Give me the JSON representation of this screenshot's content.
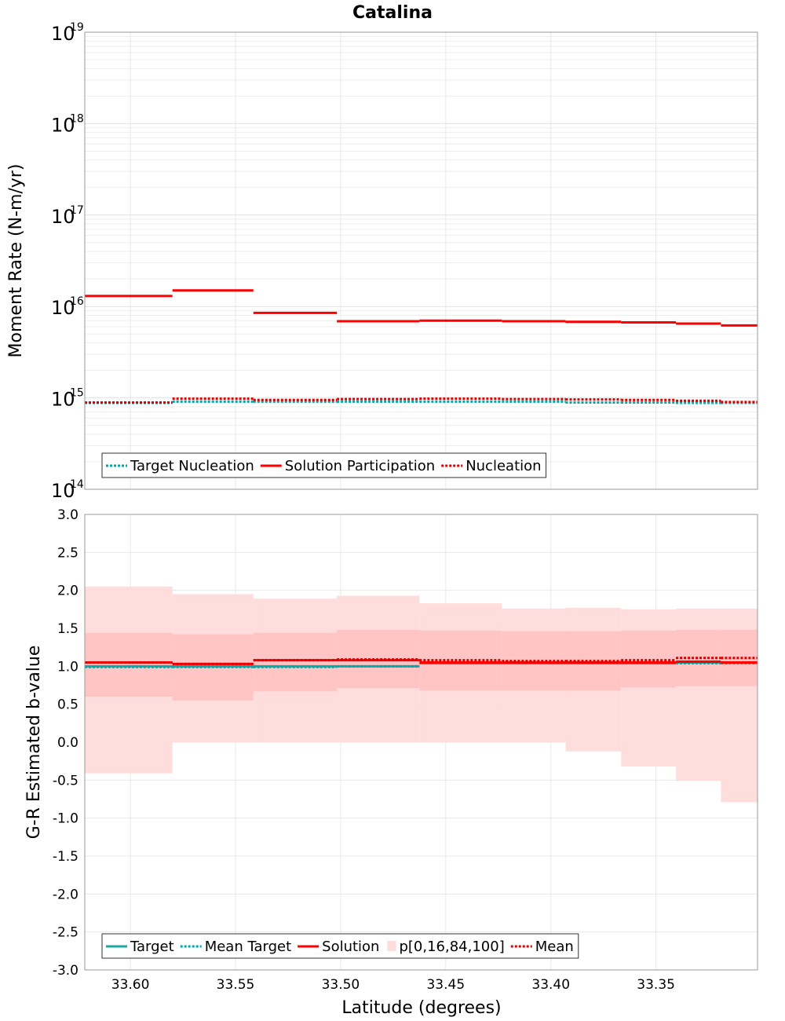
{
  "chart_data": [
    {
      "type": "line",
      "title": "Catalina",
      "ylabel": "Moment Rate (N-m/yr)",
      "xlabel": "",
      "yscale": "log",
      "ylim": [
        100000000000000.0,
        1e+19
      ],
      "xlim": [
        33.6217,
        33.3017
      ],
      "xaxis_reversed": true,
      "grid": true,
      "legend_position": "bottom-left",
      "y_tick_mantissa": "10",
      "y_tick_exponents": [
        "14",
        "15",
        "16",
        "17",
        "18",
        "19"
      ],
      "x_bin_edges": [
        33.6217,
        33.58,
        33.5415,
        33.5018,
        33.4625,
        33.4233,
        33.393,
        33.3666,
        33.3405,
        33.3191,
        33.3017
      ],
      "series": [
        {
          "name": "Target Nucleation",
          "color": "#00aaaa",
          "style": "dotted",
          "values": [
            880000000000000.0,
            910000000000000.0,
            910000000000000.0,
            910000000000000.0,
            910000000000000.0,
            910000000000000.0,
            890000000000000.0,
            890000000000000.0,
            880000000000000.0,
            880000000000000.0
          ]
        },
        {
          "name": "Solution Participation",
          "color": "#ff0000",
          "style": "solid",
          "values": [
            1.3e+16,
            1.5e+16,
            8500000000000000.0,
            6900000000000000.0,
            7000000000000000.0,
            6900000000000000.0,
            6800000000000000.0,
            6700000000000000.0,
            6500000000000000.0,
            6200000000000000.0
          ]
        },
        {
          "name": "Nucleation",
          "color": "#dd0000",
          "style": "dotted",
          "values": [
            890000000000000.0,
            980000000000000.0,
            950000000000000.0,
            970000000000000.0,
            980000000000000.0,
            970000000000000.0,
            960000000000000.0,
            950000000000000.0,
            930000000000000.0,
            900000000000000.0
          ]
        }
      ]
    },
    {
      "type": "line",
      "title": "",
      "ylabel": "G-R Estimated b-value",
      "xlabel": "Latitude (degrees)",
      "ylim": [
        -3.0,
        3.0
      ],
      "xlim": [
        33.6217,
        33.3017
      ],
      "xaxis_reversed": true,
      "grid": true,
      "legend_position": "bottom-left",
      "y_ticks": [
        "3.0",
        "2.5",
        "2.0",
        "1.5",
        "1.0",
        "0.5",
        "0.0",
        "-0.5",
        "-1.0",
        "-1.5",
        "-2.0",
        "-2.5",
        "-3.0"
      ],
      "x_ticks": [
        "33.60",
        "33.55",
        "33.50",
        "33.45",
        "33.40",
        "33.35"
      ],
      "x_tick_values": [
        33.6,
        33.55,
        33.5,
        33.45,
        33.4,
        33.35
      ],
      "x_bin_edges": [
        33.6217,
        33.58,
        33.5415,
        33.5018,
        33.4625,
        33.4233,
        33.393,
        33.3666,
        33.3405,
        33.3191,
        33.3017
      ],
      "series": [
        {
          "name": "Target",
          "color": "#1aa8a0",
          "style": "solid",
          "values": [
            1.0,
            1.0,
            1.0,
            1.0,
            1.04,
            1.04,
            1.04,
            1.04,
            1.05,
            1.05
          ]
        },
        {
          "name": "Mean Target",
          "color": "#00aaaa",
          "style": "dotted",
          "values": [
            0.99,
            0.99,
            0.99,
            1.0,
            1.04,
            1.04,
            1.04,
            1.04,
            1.04,
            1.04
          ]
        },
        {
          "name": "Solution",
          "color": "#ff0000",
          "style": "solid",
          "values": [
            1.05,
            1.03,
            1.08,
            1.08,
            1.05,
            1.05,
            1.05,
            1.05,
            1.06,
            1.05
          ]
        },
        {
          "name": "p[0,16,84,100]",
          "color": "#ffaaaa",
          "style": "band",
          "p0": [
            -0.41,
            0.0,
            0.0,
            0.0,
            0.0,
            0.0,
            -0.12,
            -0.32,
            -0.51,
            -0.79
          ],
          "p16": [
            0.6,
            0.55,
            0.67,
            0.71,
            0.68,
            0.68,
            0.68,
            0.72,
            0.74,
            0.74
          ],
          "p84": [
            1.44,
            1.42,
            1.44,
            1.48,
            1.47,
            1.46,
            1.46,
            1.47,
            1.48,
            1.48
          ],
          "p100": [
            2.05,
            1.95,
            1.89,
            1.93,
            1.83,
            1.76,
            1.77,
            1.75,
            1.76,
            1.76
          ]
        },
        {
          "name": "Mean",
          "color": "#dd0000",
          "style": "dotted",
          "values": [
            1.05,
            1.03,
            1.08,
            1.09,
            1.08,
            1.07,
            1.07,
            1.08,
            1.11,
            1.11
          ]
        }
      ]
    }
  ]
}
